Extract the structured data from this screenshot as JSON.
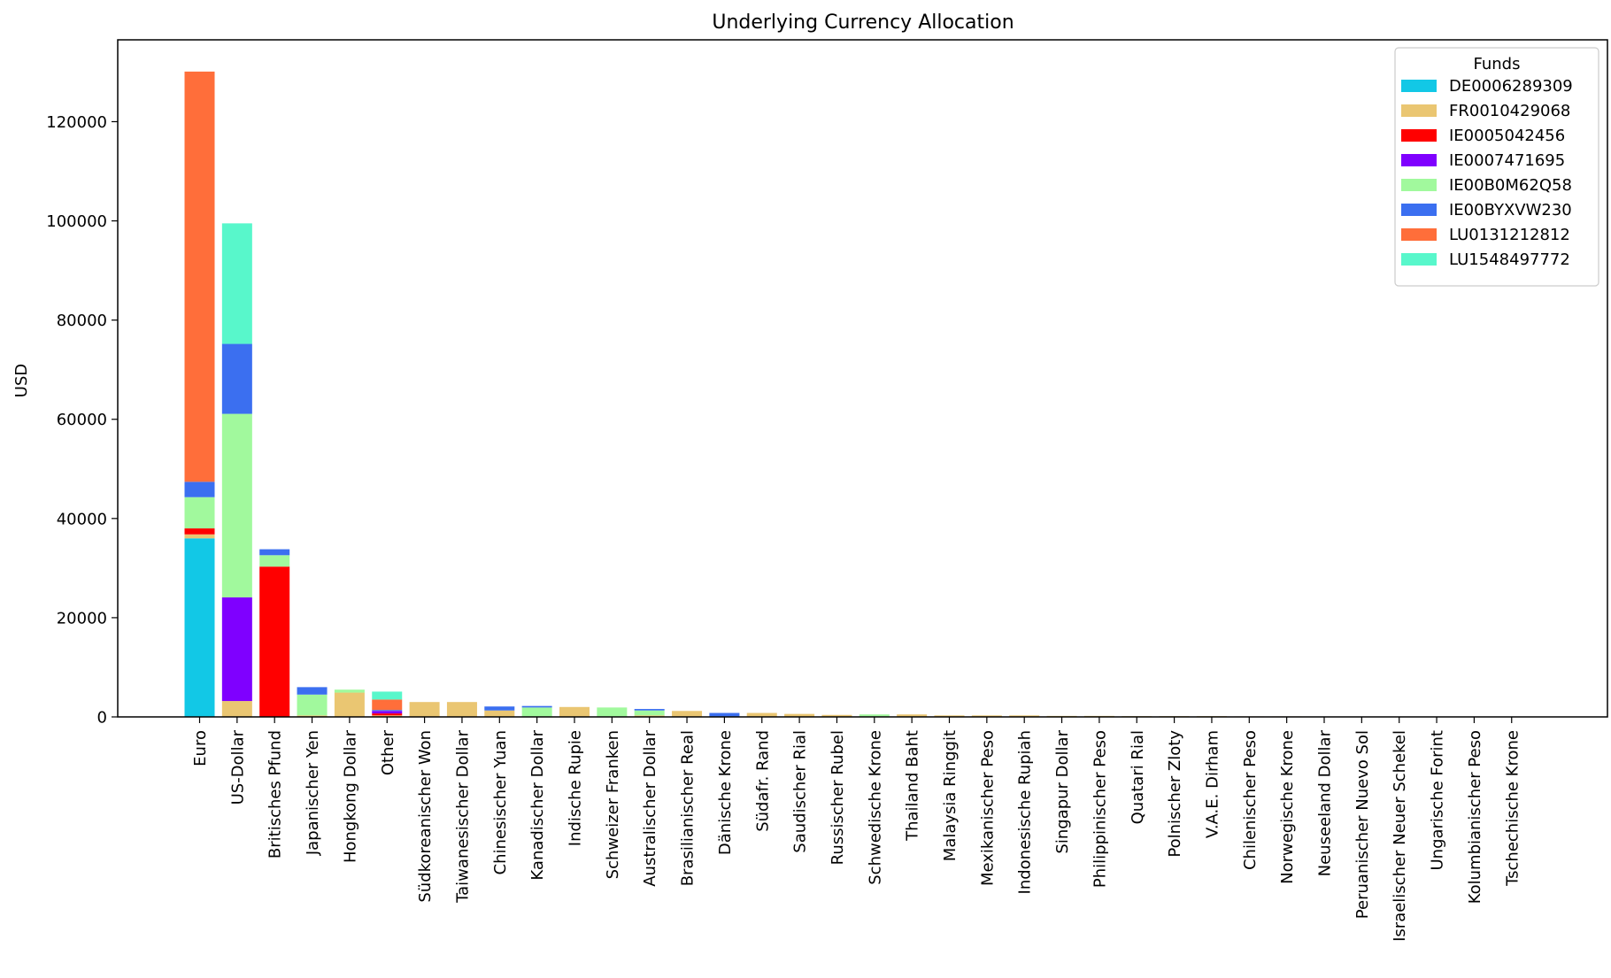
{
  "chart_data": {
    "type": "bar",
    "stacked": true,
    "title": "Underlying Currency Allocation",
    "xlabel": "",
    "ylabel": "USD",
    "ylim": [
      0,
      136500
    ],
    "yticks": [
      0,
      20000,
      40000,
      60000,
      80000,
      100000,
      120000
    ],
    "grid": false,
    "legend": {
      "title": "Funds",
      "placement": "top-right"
    },
    "categories": [
      "Euro",
      "US-Dollar",
      "Britisches Pfund",
      "Japanischer Yen",
      "Hongkong Dollar",
      "Other",
      "Südkoreanischer Won",
      "Taiwanesischer Dollar",
      "Chinesischer Yuan",
      "Kanadischer Dollar",
      "Indische Rupie",
      "Schweizer Franken",
      "Australischer Dollar",
      "Brasilianischer Real",
      "Dänische Krone",
      "Südafr. Rand",
      "Saudischer Rial",
      "Russischer Rubel",
      "Schwedische Krone",
      "Thailand Baht",
      "Malaysia Ringgit",
      "Mexikanischer Peso",
      "Indonesische Rupiah",
      "Singapur Dollar",
      "Philippinischer Peso",
      "Quatari Rial",
      "Polnischer Zloty",
      "V.A.E. Dirham",
      "Chilenischer Peso",
      "Norwegische Krone",
      "Neuseeland Dollar",
      "Peruanischer Nuevo Sol",
      "Israelischer Neuer Schekel",
      "Ungarische Forint",
      "Kolumbianischer Peso",
      "Tschechische Krone"
    ],
    "series": [
      {
        "name": "DE0006289309",
        "color": "#12c8e6",
        "values": [
          36000,
          0,
          0,
          0,
          0,
          0,
          0,
          0,
          0,
          0,
          0,
          0,
          0,
          0,
          0,
          0,
          0,
          0,
          0,
          0,
          0,
          0,
          0,
          0,
          0,
          0,
          0,
          0,
          0,
          0,
          0,
          0,
          0,
          0,
          0,
          0
        ]
      },
      {
        "name": "FR0010429068",
        "color": "#eac672",
        "values": [
          800,
          3200,
          0,
          300,
          4900,
          300,
          3000,
          3000,
          1300,
          100,
          2000,
          100,
          300,
          1200,
          100,
          800,
          600,
          400,
          100,
          500,
          300,
          300,
          300,
          200,
          200,
          150,
          150,
          150,
          100,
          100,
          80,
          80,
          60,
          50,
          50,
          40
        ]
      },
      {
        "name": "IE0005042456",
        "color": "#ff0000",
        "values": [
          1200,
          0,
          30300,
          0,
          0,
          400,
          0,
          0,
          0,
          0,
          0,
          0,
          0,
          0,
          0,
          0,
          0,
          0,
          0,
          0,
          0,
          0,
          0,
          0,
          0,
          0,
          0,
          0,
          0,
          0,
          0,
          0,
          0,
          0,
          0,
          0
        ]
      },
      {
        "name": "IE0007471695",
        "color": "#7f00ff",
        "values": [
          0,
          20900,
          0,
          0,
          0,
          500,
          0,
          0,
          0,
          0,
          0,
          0,
          0,
          0,
          0,
          0,
          0,
          0,
          0,
          0,
          0,
          0,
          0,
          0,
          0,
          0,
          0,
          0,
          0,
          0,
          0,
          0,
          0,
          0,
          0,
          0
        ]
      },
      {
        "name": "IE00B0M62Q58",
        "color": "#a1f99d",
        "values": [
          6300,
          37000,
          2300,
          4200,
          600,
          0,
          0,
          0,
          0,
          1800,
          0,
          1800,
          1000,
          0,
          0,
          0,
          0,
          0,
          400,
          0,
          0,
          0,
          0,
          0,
          0,
          0,
          0,
          0,
          0,
          0,
          0,
          0,
          0,
          0,
          0,
          0
        ]
      },
      {
        "name": "IE00BYXVW230",
        "color": "#3b6ff0",
        "values": [
          3100,
          14100,
          1200,
          1500,
          0,
          200,
          0,
          0,
          800,
          300,
          0,
          0,
          300,
          0,
          700,
          0,
          0,
          0,
          0,
          0,
          0,
          0,
          0,
          0,
          0,
          0,
          0,
          0,
          0,
          0,
          0,
          0,
          0,
          0,
          0,
          0
        ]
      },
      {
        "name": "LU0131212812",
        "color": "#ff6e3a",
        "values": [
          82700,
          0,
          0,
          0,
          0,
          2100,
          0,
          0,
          0,
          0,
          0,
          0,
          0,
          0,
          0,
          0,
          0,
          0,
          0,
          0,
          0,
          0,
          0,
          0,
          0,
          0,
          0,
          0,
          0,
          0,
          0,
          0,
          0,
          0,
          0,
          0
        ]
      },
      {
        "name": "LU1548497772",
        "color": "#58f7cb",
        "values": [
          0,
          24300,
          0,
          0,
          0,
          1600,
          0,
          0,
          0,
          0,
          0,
          0,
          0,
          0,
          0,
          0,
          0,
          0,
          0,
          0,
          0,
          0,
          0,
          0,
          0,
          0,
          0,
          0,
          0,
          0,
          0,
          0,
          0,
          0,
          0,
          0
        ]
      }
    ]
  }
}
